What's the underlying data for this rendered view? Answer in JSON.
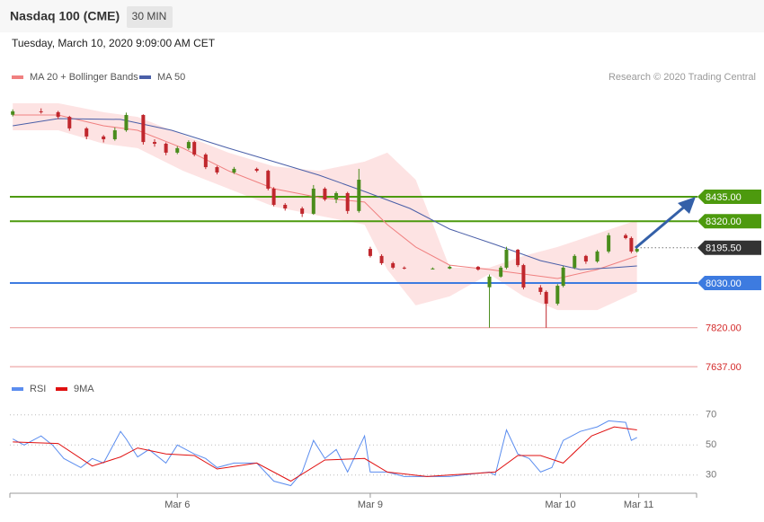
{
  "header": {
    "title": "Nasdaq 100 (CME)",
    "interval": "30 MIN",
    "timestamp": "Tuesday, March 10, 2020 9:09:00 AM CET",
    "credit": "Research © 2020 Trading Central"
  },
  "chart_data": [
    {
      "type": "candlestick",
      "xlim": [
        -0.5,
        120.5
      ],
      "ylim": [
        7600,
        8880
      ],
      "up_color": "#4a8c1c",
      "down_color": "#c0272d",
      "candles": {
        "x": [
          0,
          5,
          8,
          10,
          13,
          16,
          18,
          20,
          23,
          25,
          27,
          29,
          31,
          32,
          34,
          36,
          39,
          43,
          45,
          46,
          48,
          51,
          53,
          55,
          57,
          59,
          61,
          63,
          65,
          67,
          69,
          74,
          77,
          82,
          84,
          86,
          87,
          89,
          90,
          93,
          94,
          96,
          97,
          99,
          101,
          103,
          105,
          108,
          109,
          110
        ],
        "open": [
          8820,
          8836,
          8832,
          8810,
          8756,
          8718,
          8705,
          8747,
          8819,
          8692,
          8684,
          8642,
          8663,
          8692,
          8633,
          8574,
          8549,
          8566,
          8557,
          8473,
          8397,
          8380,
          8355,
          8473,
          8422,
          8452,
          8368,
          8190,
          8157,
          8123,
          8102,
          8098,
          8098,
          8106,
          8010,
          8060,
          8102,
          8186,
          8114,
          8009,
          7988,
          7933,
          8017,
          8102,
          8157,
          8131,
          8178,
          8254,
          8241,
          8178
        ],
        "high": [
          8845,
          8850,
          8838,
          8815,
          8762,
          8725,
          8760,
          8830,
          8822,
          8705,
          8690,
          8672,
          8700,
          8698,
          8640,
          8580,
          8575,
          8572,
          8562,
          8480,
          8405,
          8388,
          8490,
          8480,
          8460,
          8458,
          8566,
          8200,
          8165,
          8130,
          8108,
          8103,
          8112,
          8110,
          8070,
          8110,
          8200,
          8190,
          8120,
          8020,
          7995,
          8025,
          8110,
          8165,
          8162,
          8185,
          8265,
          8262,
          8248,
          8196
        ],
        "low": [
          8812,
          8825,
          8800,
          8745,
          8705,
          8690,
          8698,
          8740,
          8680,
          8670,
          8630,
          8635,
          8655,
          8625,
          8565,
          8540,
          8542,
          8550,
          8465,
          8390,
          8370,
          8340,
          8350,
          8415,
          8405,
          8355,
          8360,
          8150,
          8115,
          8095,
          8094,
          8094,
          8095,
          8088,
          7820,
          8055,
          8095,
          8105,
          8000,
          7975,
          7820,
          7925,
          8010,
          8095,
          8120,
          8125,
          8170,
          8235,
          8170,
          8172
        ],
        "close": [
          8836,
          8832,
          8810,
          8756,
          8718,
          8705,
          8747,
          8819,
          8692,
          8684,
          8642,
          8663,
          8692,
          8633,
          8574,
          8549,
          8566,
          8557,
          8473,
          8397,
          8380,
          8355,
          8473,
          8422,
          8452,
          8368,
          8515,
          8157,
          8123,
          8102,
          8098,
          8098,
          8106,
          8093,
          8060,
          8102,
          8186,
          8114,
          8009,
          7988,
          7933,
          8017,
          8102,
          8157,
          8131,
          8178,
          8254,
          8241,
          8178,
          8190
        ]
      },
      "series": [
        {
          "name": "MA 20 + Bollinger Bands",
          "color": "#f08080",
          "band_color": "#fde3e3",
          "x": [
            0,
            8,
            16,
            22,
            30,
            38,
            46,
            54,
            62,
            66,
            71,
            77,
            84,
            90,
            96,
            103,
            110
          ],
          "values": [
            8819,
            8819,
            8768,
            8747,
            8663,
            8557,
            8473,
            8431,
            8410,
            8304,
            8199,
            8114,
            8093,
            8072,
            8051,
            8093,
            8157
          ],
          "upper": [
            8874,
            8874,
            8832,
            8810,
            8726,
            8642,
            8578,
            8557,
            8600,
            8642,
            8515,
            8102,
            8102,
            8157,
            8199,
            8262,
            8325
          ],
          "lower": [
            8747,
            8747,
            8684,
            8663,
            8557,
            8473,
            8389,
            8346,
            8304,
            8093,
            7925,
            7967,
            8072,
            7967,
            7903,
            7903,
            7988
          ]
        },
        {
          "name": "MA 50",
          "color": "#4a5fa8",
          "x": [
            0,
            8,
            19,
            28,
            38,
            46,
            54,
            62,
            70,
            77,
            85,
            93,
            100,
            106,
            110
          ],
          "values": [
            8768,
            8802,
            8798,
            8747,
            8663,
            8600,
            8536,
            8460,
            8380,
            8283,
            8211,
            8135,
            8093,
            8102,
            8110
          ]
        }
      ],
      "levels": [
        {
          "value": 8435,
          "label": "8435.00",
          "color": "#4d9a0e",
          "box": true,
          "style": "solid"
        },
        {
          "value": 8320,
          "label": "8320.00",
          "color": "#4d9a0e",
          "box": true,
          "style": "solid"
        },
        {
          "value": 8195.5,
          "label": "8195.50",
          "color": "#333333",
          "box": true,
          "style": "dotted"
        },
        {
          "value": 8030,
          "label": "8030.00",
          "color": "#3d7be0",
          "box": true,
          "style": "solid"
        },
        {
          "value": 7820,
          "label": "7820.00",
          "color": "#d42a2a",
          "box": false,
          "style": "solid"
        },
        {
          "value": 7637,
          "label": "7637.00",
          "color": "#d42a2a",
          "box": false,
          "style": "solid"
        }
      ]
    },
    {
      "type": "line",
      "xlim": [
        -0.5,
        120.5
      ],
      "ylim": [
        20,
        80
      ],
      "yticks": [
        70,
        50,
        30
      ],
      "grid": true,
      "xticks": [
        {
          "value": 29,
          "label": "Mar 6"
        },
        {
          "value": 63,
          "label": "Mar 9"
        },
        {
          "value": 96.5,
          "label": "Mar 10"
        },
        {
          "value": 110.3,
          "label": "Mar 11"
        }
      ],
      "series": [
        {
          "name": "RSI",
          "color": "#5b8def",
          "x": [
            0,
            2,
            5,
            7,
            9,
            12,
            14,
            16,
            19,
            20,
            22,
            24,
            27,
            29,
            32,
            34,
            36,
            39,
            41,
            43,
            46,
            49,
            51,
            53,
            55,
            57,
            59,
            62,
            63,
            66,
            69,
            77,
            84,
            85,
            87,
            89,
            91,
            93,
            95,
            97,
            100,
            103,
            105,
            108,
            109,
            110
          ],
          "values": [
            54,
            50,
            56,
            50,
            41,
            35,
            41,
            38,
            59,
            54,
            42,
            47,
            38,
            50,
            44,
            41,
            35,
            38,
            38,
            38,
            26,
            23,
            32,
            53,
            41,
            47,
            32,
            56,
            32,
            32,
            29,
            29,
            32,
            30,
            60,
            44,
            41,
            32,
            35,
            53,
            59,
            62,
            66,
            65,
            53,
            55
          ]
        },
        {
          "name": "9MA",
          "color": "#e01010",
          "x": [
            0,
            8,
            14,
            19,
            22,
            27,
            32,
            36,
            43,
            49,
            55,
            62,
            66,
            73,
            81,
            85,
            89,
            93,
            97,
            102,
            106,
            110
          ],
          "values": [
            52,
            51,
            36,
            42,
            48,
            44,
            43,
            34,
            38,
            26,
            40,
            41,
            32,
            29,
            31,
            32,
            43,
            43,
            38,
            56,
            62,
            60
          ]
        }
      ]
    }
  ]
}
